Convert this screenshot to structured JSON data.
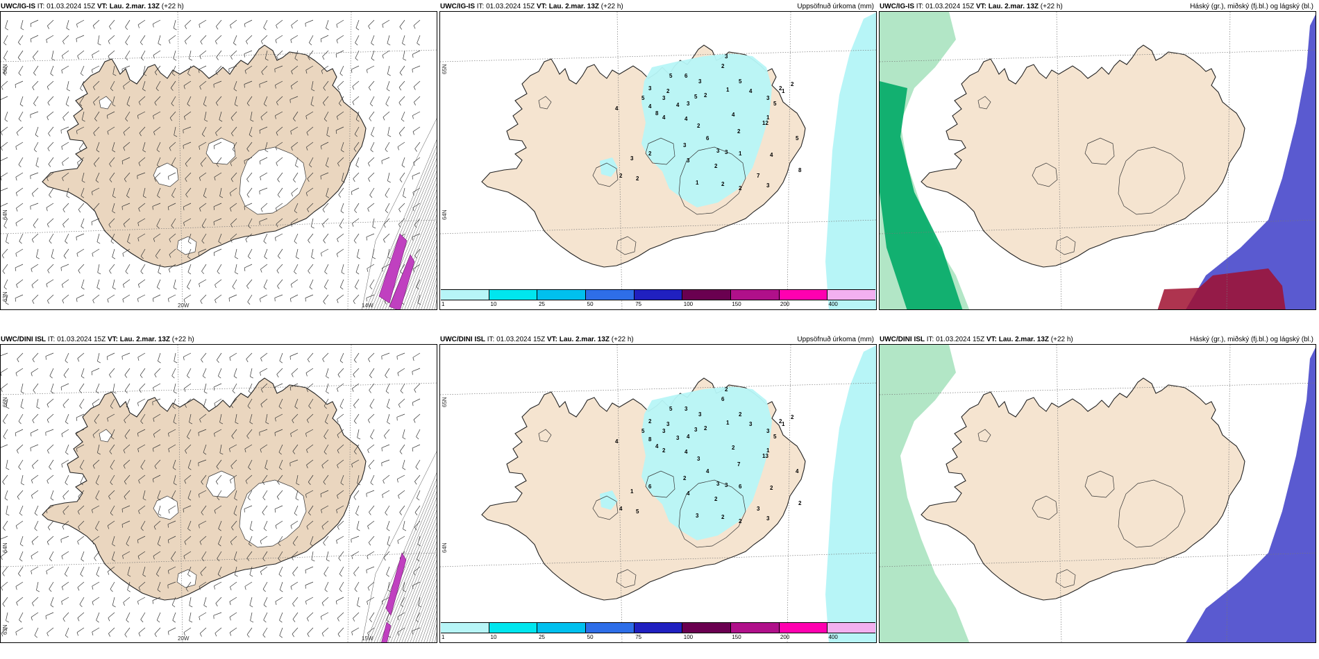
{
  "panels": [
    {
      "model": "UWC/IG-IS",
      "it_label": "IT:",
      "it_value": "01.03.2024 15Z",
      "vt_label": "VT:",
      "vt_value": "Lau. 2.mar. 13Z",
      "lead": "(+22 h)",
      "title_right": "",
      "type": "wind",
      "lat_labels": [
        "66N",
        "64N",
        "63N"
      ],
      "lon_labels": [
        "20W",
        "14W"
      ],
      "numbers": []
    },
    {
      "model": "UWC/IG-IS",
      "it_label": "IT:",
      "it_value": "01.03.2024 15Z",
      "vt_label": "VT:",
      "vt_value": "Lau. 2.mar. 13Z",
      "lead": "(+22 h)",
      "title_right": "Uppsöfnuð úrkoma (mm)",
      "type": "precip",
      "lat_labels": [
        "65N",
        "64N"
      ],
      "lon_labels": [],
      "numbers": [
        "5",
        "6",
        "2",
        "3",
        "3",
        "5",
        "3",
        "4",
        "4",
        "8",
        "4",
        "4",
        "2",
        "4",
        "2",
        "6",
        "3",
        "3",
        "3",
        "4",
        "1",
        "3",
        "2",
        "1",
        "12",
        "5",
        "3",
        "3",
        "2",
        "2",
        "1",
        "5",
        "4",
        "3",
        "2",
        "4",
        "5",
        "2",
        "3",
        "2",
        "2",
        "1",
        "2",
        "2",
        "7",
        "3",
        "1",
        "2",
        "5",
        "8"
      ]
    },
    {
      "model": "UWC/IG-IS",
      "it_label": "IT:",
      "it_value": "01.03.2024 15Z",
      "vt_label": "VT:",
      "vt_value": "Lau. 2.mar. 13Z",
      "lead": "(+22 h)",
      "title_right": "Háský (gr.), miðský (fj.bl.) og lágský (bl.)",
      "type": "cloud",
      "lat_labels": [],
      "lon_labels": [],
      "numbers": []
    },
    {
      "model": "UWC/DINI ISL",
      "it_label": "IT:",
      "it_value": "01.03.2024 15Z",
      "vt_label": "VT:",
      "vt_value": "Lau. 2.mar. 13Z",
      "lead": "(+22 h)",
      "title_right": "",
      "type": "wind",
      "lat_labels": [
        "66N",
        "64N",
        "63N"
      ],
      "lon_labels": [
        "20W",
        "15W"
      ],
      "numbers": []
    },
    {
      "model": "UWC/DINI ISL",
      "it_label": "IT:",
      "it_value": "01.03.2024 15Z",
      "vt_label": "VT:",
      "vt_value": "Lau. 2.mar. 13Z",
      "lead": "(+22 h)",
      "title_right": "Uppsöfnuð úrkoma (mm)",
      "type": "precip",
      "lat_labels": [
        "65N",
        "64N"
      ],
      "lon_labels": [],
      "numbers": [
        "5",
        "3",
        "6",
        "2",
        "3",
        "3",
        "4",
        "8",
        "3",
        "4",
        "2",
        "4",
        "3",
        "2",
        "7",
        "4",
        "3",
        "2",
        "4",
        "4",
        "1",
        "3",
        "2",
        "6",
        "13",
        "5",
        "2",
        "3",
        "3",
        "2",
        "1",
        "2",
        "3",
        "3",
        "2",
        "2",
        "5",
        "6",
        "1",
        "4",
        "5",
        "3",
        "2",
        "2",
        "3",
        "3",
        "1",
        "2",
        "4",
        "2"
      ]
    },
    {
      "model": "UWC/DINI ISL",
      "it_label": "IT:",
      "it_value": "01.03.2024 15Z",
      "vt_label": "VT:",
      "vt_value": "Lau. 2.mar. 13Z",
      "lead": "(+22 h)",
      "title_right": "Háský (gr.), miðský (fj.bl.) og lágský (bl.)",
      "type": "cloud",
      "lat_labels": [],
      "lon_labels": [],
      "numbers": []
    }
  ],
  "legend": {
    "labels": [
      "1",
      "10",
      "25",
      "50",
      "75",
      "100",
      "150",
      "200",
      "400"
    ],
    "colors": [
      "#b7f5f7",
      "#00e6ee",
      "#00c0ee",
      "#2e6ee8",
      "#2020c0",
      "#6a0050",
      "#b0108a",
      "#ff00b0",
      "#f2b0f0"
    ]
  },
  "colors": {
    "land": "#f5e4d0",
    "land_wind": "#ead6bf",
    "precip_low": "#b7f5f7",
    "cloud_high": "#00aa66",
    "cloud_mid": "#5a5ad0",
    "cloud_low": "#a01030"
  }
}
